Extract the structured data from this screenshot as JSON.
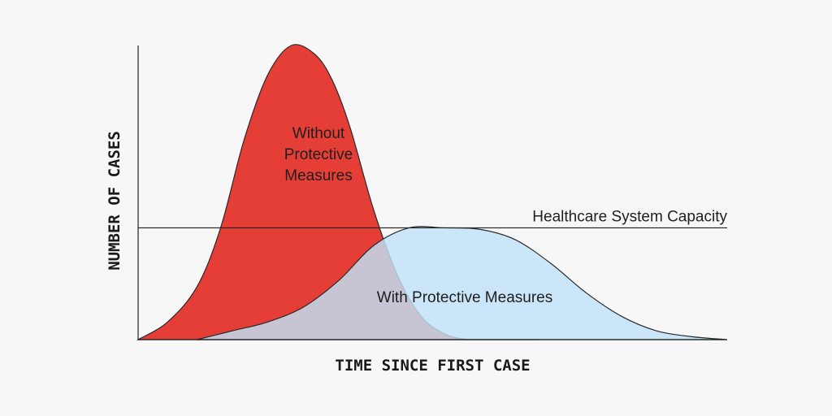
{
  "chart_data": {
    "type": "area",
    "xlabel": "TIME SINCE FIRST CASE",
    "ylabel": "NUMBER OF CASES",
    "grid": false,
    "xlim": [
      0,
      100
    ],
    "ylim": [
      0,
      100
    ],
    "reference_line": {
      "label": "Healthcare System Capacity",
      "value": 38
    },
    "series": [
      {
        "name_lines": [
          "Without",
          "Protective",
          "Measures"
        ],
        "color": "#e53e36",
        "x": [
          0,
          5,
          10,
          14,
          18,
          22,
          26,
          30,
          33,
          36,
          40,
          44,
          48,
          52,
          56,
          60,
          64,
          68
        ],
        "y": [
          0,
          6,
          18,
          38,
          68,
          90,
          100,
          97,
          88,
          72,
          44,
          22,
          8,
          2,
          0,
          0,
          0,
          0
        ]
      },
      {
        "name": "With Protective Measures",
        "color": "#bfe2f8",
        "x": [
          10,
          16,
          22,
          28,
          34,
          40,
          46,
          52,
          58,
          64,
          70,
          76,
          82,
          88,
          94,
          100
        ],
        "y": [
          0,
          3,
          6,
          11,
          20,
          32,
          38,
          38,
          37.5,
          34,
          26,
          16,
          8,
          3,
          1,
          0
        ]
      }
    ]
  }
}
